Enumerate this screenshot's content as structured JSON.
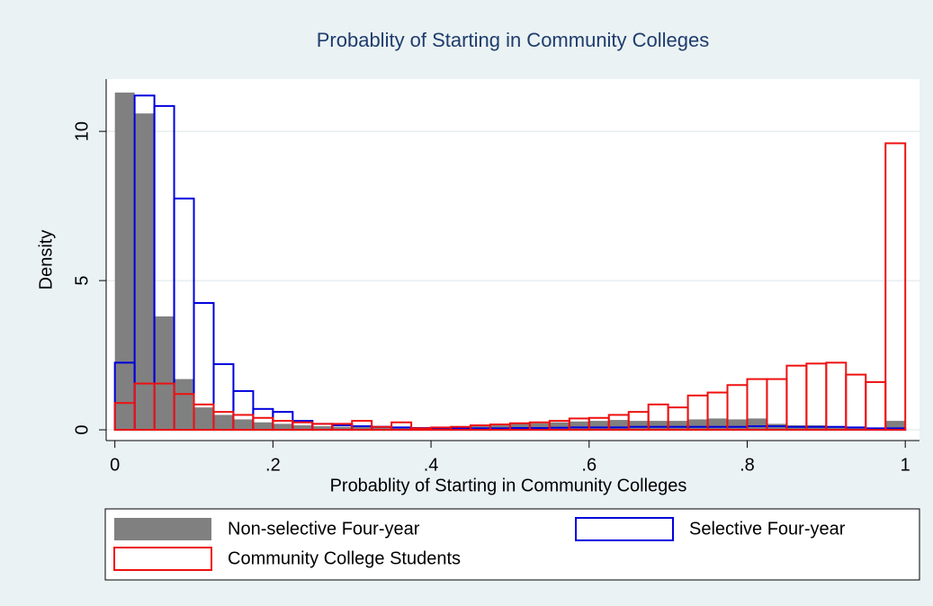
{
  "chart_data": {
    "type": "histogram",
    "title": "Probablity of Starting in Community Colleges",
    "x_label": "Probablity of Starting in Community Colleges",
    "y_label": "Density",
    "bins": [
      0,
      0.025,
      0.05,
      0.075,
      0.1,
      0.125,
      0.15,
      0.175,
      0.2,
      0.225,
      0.25,
      0.275,
      0.3,
      0.325,
      0.35,
      0.375,
      0.4,
      0.425,
      0.45,
      0.475,
      0.5,
      0.525,
      0.55,
      0.575,
      0.6,
      0.625,
      0.65,
      0.675,
      0.7,
      0.725,
      0.75,
      0.775,
      0.8,
      0.825,
      0.85,
      0.875,
      0.9,
      0.925,
      0.95,
      0.975,
      1
    ],
    "series": [
      {
        "name": "Non-selective Four-year",
        "color": "#808080",
        "style": "filled",
        "values": [
          11.3,
          10.6,
          3.8,
          1.7,
          0.75,
          0.5,
          0.35,
          0.25,
          0.2,
          0.15,
          0.12,
          0.1,
          0.1,
          0.08,
          0.07,
          0.07,
          0.08,
          0.1,
          0.12,
          0.15,
          0.2,
          0.22,
          0.25,
          0.28,
          0.3,
          0.33,
          0.3,
          0.3,
          0.3,
          0.35,
          0.38,
          0.35,
          0.38,
          0.2,
          0.15,
          0.15,
          0.12,
          0.08,
          0.05,
          0.3
        ]
      },
      {
        "name": "Selective Four-year",
        "color": "#0000dd",
        "style": "outline",
        "values": [
          2.25,
          11.2,
          10.85,
          7.75,
          4.25,
          2.2,
          1.3,
          0.7,
          0.6,
          0.3,
          0.2,
          0.15,
          0.12,
          0.1,
          0.08,
          0.06,
          0.05,
          0.05,
          0.05,
          0.05,
          0.06,
          0.06,
          0.07,
          0.08,
          0.08,
          0.08,
          0.1,
          0.1,
          0.1,
          0.1,
          0.1,
          0.1,
          0.12,
          0.12,
          0.1,
          0.1,
          0.1,
          0.08,
          0.05,
          0.05
        ]
      },
      {
        "name": "Community College Students",
        "color": "#ee1111",
        "style": "outline",
        "values": [
          0.9,
          1.55,
          1.55,
          1.2,
          0.85,
          0.6,
          0.5,
          0.4,
          0.3,
          0.25,
          0.2,
          0.2,
          0.3,
          0.1,
          0.25,
          0.05,
          0.08,
          0.1,
          0.15,
          0.18,
          0.22,
          0.25,
          0.3,
          0.38,
          0.4,
          0.5,
          0.6,
          0.85,
          0.75,
          1.15,
          1.25,
          1.5,
          1.7,
          1.7,
          2.15,
          2.22,
          2.25,
          1.85,
          1.6,
          9.6
        ]
      }
    ],
    "xlim": [
      -0.011,
      1.018
    ],
    "ylim": [
      -0.36,
      11.75
    ],
    "xticks": [
      0,
      {
        "value": 0.2,
        "label": ".2"
      },
      {
        "value": 0.4,
        "label": ".4"
      },
      {
        "value": 0.6,
        "label": ".6"
      },
      {
        "value": 0.8,
        "label": ".8"
      },
      1
    ],
    "yticks": [
      0,
      5,
      10
    ],
    "grid": true
  }
}
